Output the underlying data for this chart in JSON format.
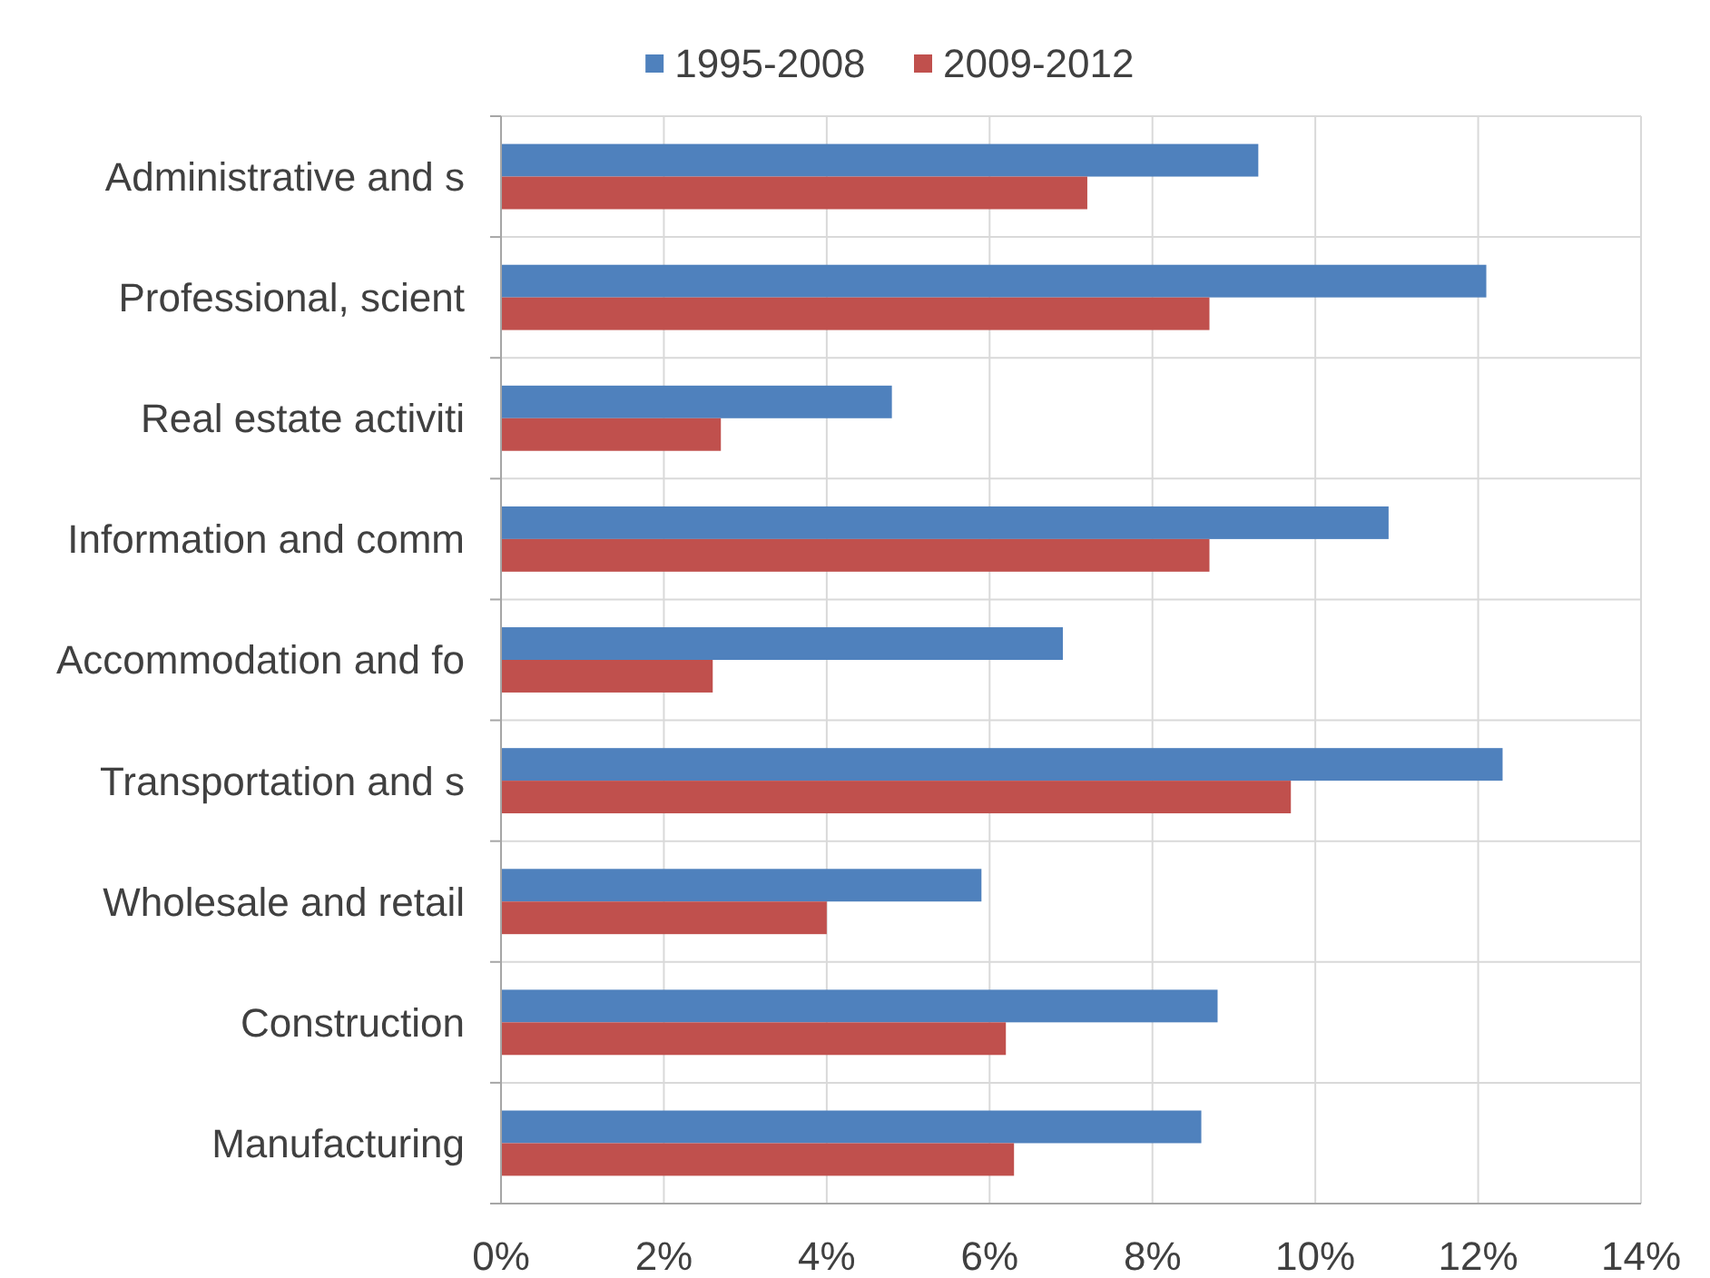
{
  "chart_data": {
    "type": "bar",
    "orientation": "horizontal",
    "categories": [
      "Administrative and s",
      "Professional, scient",
      "Real estate activiti",
      "Information and comm",
      "Accommodation and fo",
      "Transportation and s",
      "Wholesale and retail",
      "Construction",
      "Manufacturing"
    ],
    "series": [
      {
        "name": "1995-2008",
        "color": "#4f81bd",
        "values": [
          9.3,
          12.1,
          4.8,
          10.9,
          6.9,
          12.3,
          5.9,
          8.8,
          8.6
        ]
      },
      {
        "name": "2009-2012",
        "color": "#c0504d",
        "values": [
          7.2,
          8.7,
          2.7,
          8.7,
          2.6,
          9.7,
          4.0,
          6.2,
          6.3
        ]
      }
    ],
    "xlim": [
      0,
      14
    ],
    "xticks": [
      {
        "value": 0,
        "label": "0%"
      },
      {
        "value": 2,
        "label": "2%"
      },
      {
        "value": 4,
        "label": "4%"
      },
      {
        "value": 6,
        "label": "6%"
      },
      {
        "value": 8,
        "label": "8%"
      },
      {
        "value": 10,
        "label": "10%"
      },
      {
        "value": 12,
        "label": "12%"
      },
      {
        "value": 14,
        "label": "14%"
      }
    ],
    "grid": true,
    "legend": "top"
  }
}
